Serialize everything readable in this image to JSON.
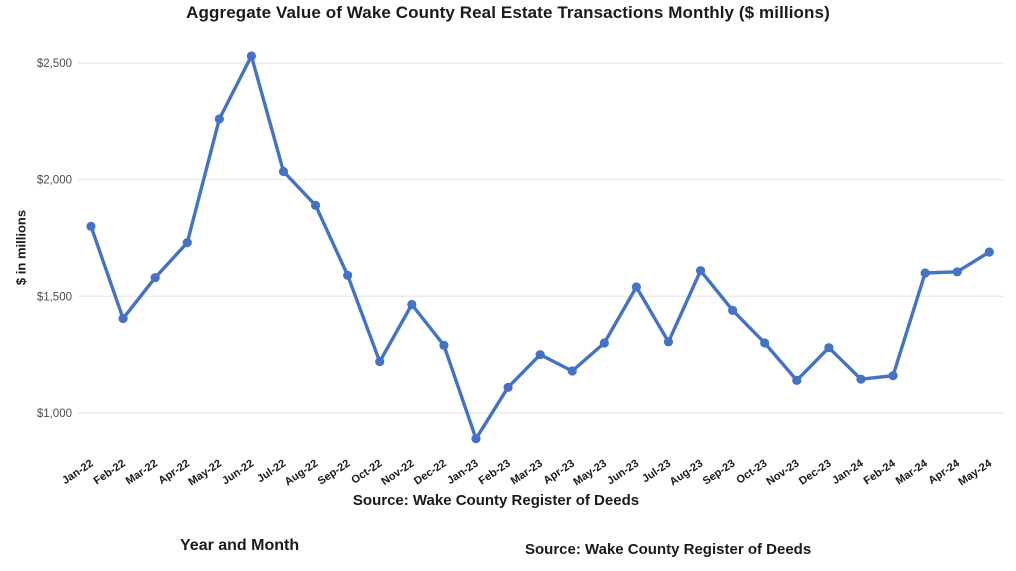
{
  "chart_data": {
    "type": "line",
    "title": "Aggregate Value of Wake County Real Estate Transactions Monthly ($ millions)",
    "ylabel": "$ in millions",
    "xlabel": "Source: Wake County Register of Deeds",
    "categories": [
      "Jan-22",
      "Feb-22",
      "Mar-22",
      "Apr-22",
      "May-22",
      "Jun-22",
      "Jul-22",
      "Aug-22",
      "Sep-22",
      "Oct-22",
      "Nov-22",
      "Dec-22",
      "Jan-23",
      "Feb-23",
      "Mar-23",
      "Apr-23",
      "May-23",
      "Jun-23",
      "Jul-23",
      "Aug-23",
      "Sep-23",
      "Oct-23",
      "Nov-23",
      "Dec-23",
      "Jan-24",
      "Feb-24",
      "Mar-24",
      "Apr-24",
      "May-24"
    ],
    "values": [
      1800,
      1405,
      1580,
      1730,
      2260,
      2530,
      2035,
      1890,
      1590,
      1220,
      1465,
      1290,
      890,
      1110,
      1250,
      1180,
      1300,
      1540,
      1305,
      1610,
      1440,
      1300,
      1140,
      1280,
      1145,
      1160,
      1600,
      1605,
      1690
    ],
    "yticks": [
      2500,
      2000,
      1500,
      1000
    ],
    "ytick_labels": [
      "$2,500",
      "$2,000",
      "$1,500",
      "$1,000"
    ],
    "ylim": [
      850,
      2600
    ],
    "grid": true,
    "legend": false,
    "line_color": "#4472C4",
    "grid_color": "#ebebeb",
    "tick_label_color": "#4d4d4d",
    "x_tick_label_color": "#1a1a1a"
  },
  "footer": {
    "year_month_label": "Year and Month",
    "source_label": "Source: Wake County Register of Deeds"
  }
}
